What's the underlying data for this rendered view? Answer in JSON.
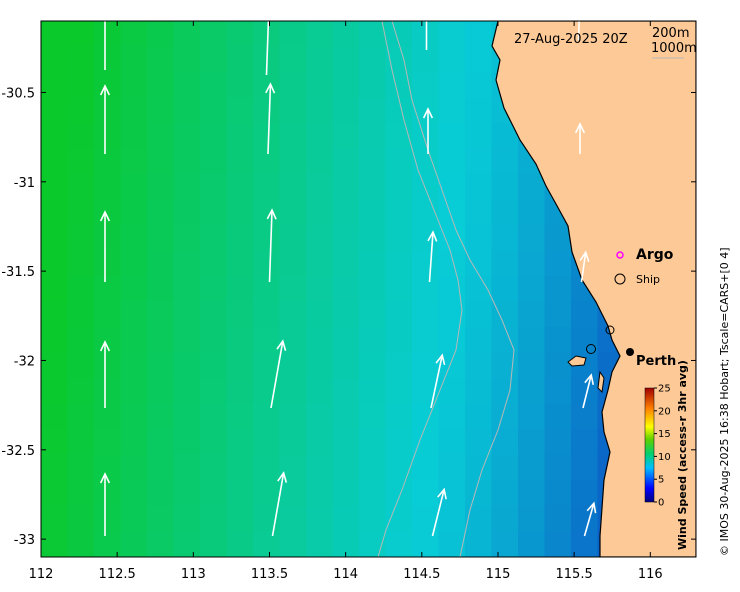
{
  "map": {
    "timestamp": "27-Aug-2025 20Z",
    "isobath_labels": [
      "200m",
      "1000m"
    ],
    "lon_ticks": [
      {
        "value": 112,
        "label": "112"
      },
      {
        "value": 112.5,
        "label": "112.5"
      },
      {
        "value": 113,
        "label": "113"
      },
      {
        "value": 113.5,
        "label": "113.5"
      },
      {
        "value": 114,
        "label": "114"
      },
      {
        "value": 114.5,
        "label": "114.5"
      },
      {
        "value": 115,
        "label": "115"
      },
      {
        "value": 115.5,
        "label": "115.5"
      },
      {
        "value": 116,
        "label": "116"
      }
    ],
    "lat_ticks": [
      {
        "value": -30.5,
        "label": "-30.5"
      },
      {
        "value": -31,
        "label": "-31"
      },
      {
        "value": -31.5,
        "label": "-31.5"
      },
      {
        "value": -32,
        "label": "-32"
      },
      {
        "value": -32.5,
        "label": "-32.5"
      },
      {
        "value": -33,
        "label": "-33"
      }
    ],
    "lon_range": [
      112,
      116.3
    ],
    "lat_range": [
      -33.1,
      -30.1
    ],
    "legend": {
      "argo_label": "Argo",
      "ship_label": "Ship",
      "argo_color": "#ff00ff",
      "ship_color": "#000000"
    },
    "places": [
      {
        "name": "Perth",
        "lon": 115.86,
        "lat": -31.95
      }
    ],
    "colorbar": {
      "title": "Wind Speed (access-r 3hr avg)",
      "ticks": [
        "0",
        "5",
        "10",
        "15",
        "20",
        "25"
      ],
      "min": 0,
      "max": 25
    },
    "credit": "© IMOS 30-Aug-2025 16:38 Hobart; Tscale=CARS+[0 4]",
    "colors": {
      "land": "#fdc996",
      "ocean_fast": "#0ac92b",
      "ocean_slow": "#0b2fc0",
      "arrow": "#ffffff",
      "isobath": "#b8b8b8"
    }
  }
}
